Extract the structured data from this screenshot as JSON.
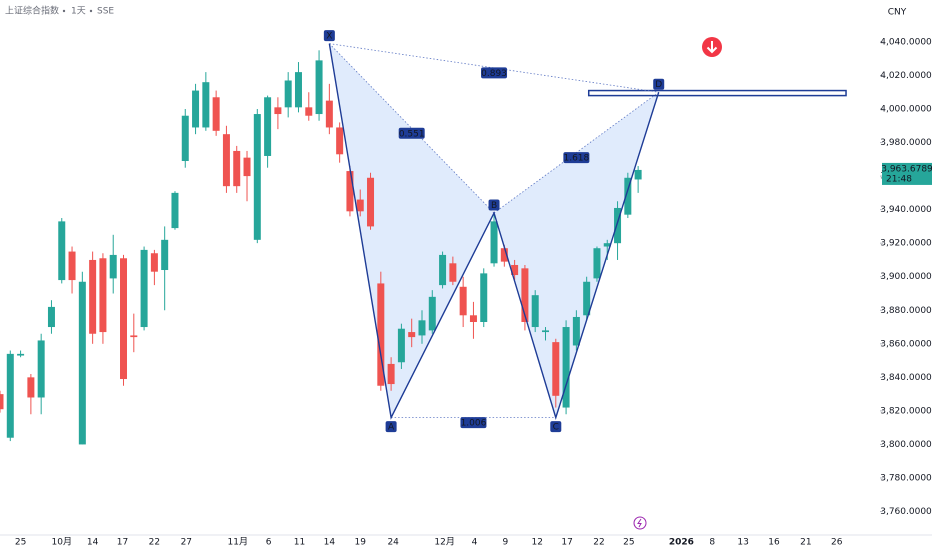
{
  "chart_data": {
    "type": "candlestick",
    "symbol": "上证综合指数",
    "interval": "1天",
    "exchange": "SSE",
    "currency": "CNY",
    "last_price": {
      "value": 3963.6789,
      "label": "3,963.6789"
    },
    "countdown": "21:48",
    "up_color": "#26a69a",
    "down_color": "#ef5350",
    "grid": false,
    "xlim": [
      0,
      85.5
    ],
    "ylim": [
      3746,
      4065
    ],
    "yticks": [
      {
        "value": 3760,
        "label": "3,760.0000"
      },
      {
        "value": 3780,
        "label": "3,780.0000"
      },
      {
        "value": 3800,
        "label": "3,800.0000"
      },
      {
        "value": 3820,
        "label": "3,820.0000"
      },
      {
        "value": 3840,
        "label": "3,840.0000"
      },
      {
        "value": 3860,
        "label": "3,860.0000"
      },
      {
        "value": 3880,
        "label": "3,880.0000"
      },
      {
        "value": 3900,
        "label": "3,900.0000"
      },
      {
        "value": 3920,
        "label": "3,920.0000"
      },
      {
        "value": 3940,
        "label": "3,940.0000"
      },
      {
        "value": 3960,
        "label": "3,960.0000"
      },
      {
        "value": 3980,
        "label": "3,980.0000"
      },
      {
        "value": 4000,
        "label": "4,000.0000"
      },
      {
        "value": 4020,
        "label": "4,020.0000"
      },
      {
        "value": 4040,
        "label": "4,040.0000"
      }
    ],
    "xticks": [
      {
        "value": 2.0,
        "label": "25"
      },
      {
        "value": 6.0,
        "label": "10月"
      },
      {
        "value": 9.0,
        "label": "14"
      },
      {
        "value": 11.9,
        "label": "17"
      },
      {
        "value": 15.0,
        "label": "22"
      },
      {
        "value": 18.1,
        "label": "27"
      },
      {
        "value": 23.1,
        "label": "11月"
      },
      {
        "value": 26.1,
        "label": "6"
      },
      {
        "value": 29.1,
        "label": "11"
      },
      {
        "value": 32.0,
        "label": "14"
      },
      {
        "value": 35.0,
        "label": "19"
      },
      {
        "value": 38.2,
        "label": "24"
      },
      {
        "value": 43.2,
        "label": "12月"
      },
      {
        "value": 46.1,
        "label": "4"
      },
      {
        "value": 49.1,
        "label": "9"
      },
      {
        "value": 52.2,
        "label": "12"
      },
      {
        "value": 55.1,
        "label": "17"
      },
      {
        "value": 58.2,
        "label": "22"
      },
      {
        "value": 61.1,
        "label": "25"
      },
      {
        "value": 66.2,
        "label": "2026"
      },
      {
        "value": 69.2,
        "label": "8"
      },
      {
        "value": 72.2,
        "label": "13"
      },
      {
        "value": 75.2,
        "label": "16"
      },
      {
        "value": 78.3,
        "label": "21"
      },
      {
        "value": 81.3,
        "label": "26"
      }
    ],
    "candles": {
      "x": [
        0,
        1,
        2,
        3,
        4,
        5,
        6,
        7,
        8,
        9,
        10,
        11,
        12,
        13,
        14,
        15,
        16,
        17,
        18,
        19,
        20,
        21,
        22,
        23,
        24,
        25,
        26,
        27,
        28,
        29,
        30,
        31,
        32,
        33,
        34,
        35,
        36,
        37,
        38,
        39,
        40,
        41,
        42,
        43,
        44,
        45,
        46,
        47,
        48,
        49,
        50,
        51,
        52,
        53,
        54,
        55,
        56,
        57,
        58,
        59,
        60,
        61,
        62
      ],
      "open": [
        3830,
        3804,
        3853,
        3840,
        3828,
        3870,
        3898,
        3915,
        3800,
        3910,
        3911,
        3899,
        3911,
        3865,
        3870,
        3914,
        3904,
        3929,
        3969,
        3989,
        3989,
        4007,
        3985,
        3975,
        3971,
        3922,
        3972,
        4001,
        4001,
        4001,
        4001,
        3997,
        4005,
        3989,
        3963,
        3946,
        3959,
        3896,
        3848,
        3849,
        3867,
        3865,
        3868,
        3895,
        3908,
        3894,
        3877,
        3873,
        3908,
        3917,
        3907,
        3905,
        3870,
        3867,
        3861,
        3822,
        3859,
        3877,
        3899,
        3918,
        3920,
        3937,
        3958
      ],
      "high": [
        3832,
        3856,
        3856,
        3842,
        3866,
        3886,
        3935,
        3918,
        3903,
        3915,
        3914,
        3925,
        3913,
        3878,
        3918,
        3916,
        3930,
        3951,
        4000,
        4015,
        4022,
        4011,
        3990,
        3978,
        3975,
        4000,
        4008,
        4007,
        4022,
        4028,
        4010,
        4035,
        4015,
        3992,
        3966,
        3952,
        3962,
        3903,
        3852,
        3872,
        3875,
        3880,
        3892,
        3915,
        3912,
        3900,
        3885,
        3905,
        3938,
        3919,
        3910,
        3907,
        3892,
        3870,
        3863,
        3874,
        3880,
        3900,
        3918,
        3922,
        3945,
        3962,
        3966
      ],
      "low": [
        3819,
        3802,
        3852,
        3818,
        3818,
        3866,
        3896,
        3890,
        3800,
        3860,
        3860,
        3890,
        3835,
        3855,
        3868,
        3895,
        3880,
        3928,
        3965,
        3985,
        3987,
        3984,
        3950,
        3950,
        3945,
        3920,
        3965,
        3988,
        3995,
        3998,
        3993,
        3993,
        3985,
        3968,
        3936,
        3936,
        3928,
        3832,
        3832,
        3845,
        3858,
        3860,
        3866,
        3893,
        3895,
        3870,
        3863,
        3870,
        3906,
        3906,
        3898,
        3868,
        3867,
        3862,
        3822,
        3818,
        3856,
        3874,
        3897,
        3910,
        3910,
        3935,
        3950
      ],
      "close": [
        3821,
        3854,
        3854,
        3828,
        3862,
        3882,
        3933,
        3898,
        3897,
        3866,
        3867,
        3913,
        3839,
        3864,
        3916,
        3903,
        3922,
        3950,
        3996,
        4011,
        4016,
        3987,
        3954,
        3954,
        3960,
        3997,
        4007,
        3997,
        4017,
        4022,
        3996,
        4029,
        3989,
        3973,
        3939,
        3939,
        3930,
        3835,
        3836,
        3869,
        3864,
        3874,
        3888,
        3913,
        3897,
        3877,
        3873,
        3902,
        3933,
        3909,
        3901,
        3873,
        3889,
        3868,
        3829,
        3870,
        3876,
        3897,
        3917,
        3920,
        3941,
        3959,
        3963.6789
      ]
    },
    "pattern": {
      "color": "#1e3c96",
      "fill": "#dbe8fb",
      "points": [
        {
          "label": "X",
          "x": 32,
          "y": 4039
        },
        {
          "label": "A",
          "x": 38,
          "y": 3816
        },
        {
          "label": "B",
          "x": 48,
          "y": 3938
        },
        {
          "label": "C",
          "x": 54,
          "y": 3816
        },
        {
          "label": "D",
          "x": 64,
          "y": 4010
        }
      ],
      "ratios": [
        {
          "from": "X",
          "to": "D",
          "value": 0.893
        },
        {
          "from": "X",
          "to": "B",
          "value": 0.551
        },
        {
          "from": "B",
          "to": "D",
          "value": 1.618
        },
        {
          "from": "A",
          "to": "C",
          "value": 1.006
        }
      ],
      "target_zone": {
        "x": [
          57.2,
          82.2
        ],
        "y": [
          4008,
          4011
        ]
      }
    }
  }
}
